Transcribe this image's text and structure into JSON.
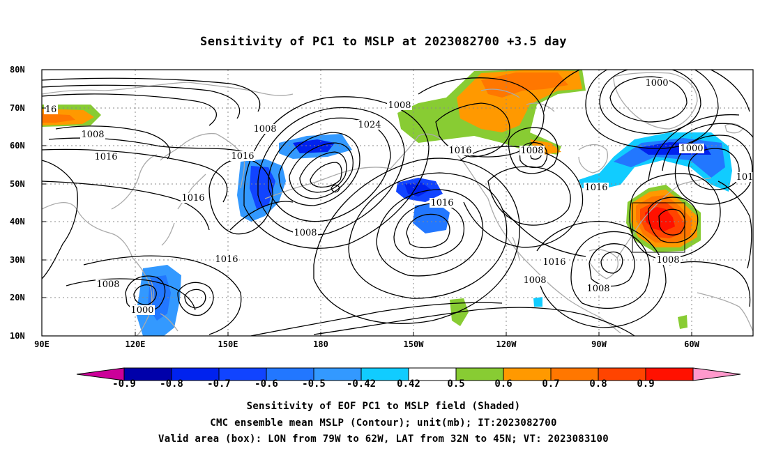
{
  "title": "Sensitivity of PC1 to MSLP at 2023082700 +3.5 day",
  "lat_labels": [
    "80N",
    "70N",
    "60N",
    "50N",
    "40N",
    "30N",
    "20N",
    "10N"
  ],
  "lon_labels": [
    "90E",
    "120E",
    "150E",
    "180",
    "150W",
    "120W",
    "90W",
    "60W"
  ],
  "contour_labels": [
    {
      "text": "16"
    },
    {
      "text": "1008"
    },
    {
      "text": "1016"
    },
    {
      "text": "1008"
    },
    {
      "text": "1016"
    },
    {
      "text": "1016"
    },
    {
      "text": "1000"
    },
    {
      "text": "1008"
    },
    {
      "text": "1016"
    },
    {
      "text": "1024"
    },
    {
      "text": "1008"
    },
    {
      "text": "1008"
    },
    {
      "text": "1000"
    },
    {
      "text": "1016"
    },
    {
      "text": "1016"
    },
    {
      "text": "1016"
    },
    {
      "text": "1008"
    },
    {
      "text": "1016"
    },
    {
      "text": "1008"
    },
    {
      "text": "1008"
    },
    {
      "text": "1000"
    },
    {
      "text": "1008"
    },
    {
      "text": "101"
    }
  ],
  "colorbar": {
    "labels": [
      "-0.9",
      "-0.8",
      "-0.7",
      "-0.6",
      "-0.5",
      "-0.42",
      "0.42",
      "0.5",
      "0.6",
      "0.7",
      "0.8",
      "0.9"
    ],
    "colors": [
      "#cc0099",
      "#0000aa",
      "#0022ee",
      "#1144ff",
      "#2277ff",
      "#3399ff",
      "#11ccff",
      "#ffffff",
      "#88cc33",
      "#ff9900",
      "#ff7700",
      "#ff4400",
      "#ff1100",
      "#ff99cc"
    ]
  },
  "captions": [
    "Sensitivity of EOF PC1 to MSLP field (Shaded)",
    "CMC ensemble mean MSLP (Contour); unit(mb); IT:2023082700",
    "Valid area (box): LON from 79W to 62W, LAT from 32N to 45N; VT: 2023083100"
  ]
}
